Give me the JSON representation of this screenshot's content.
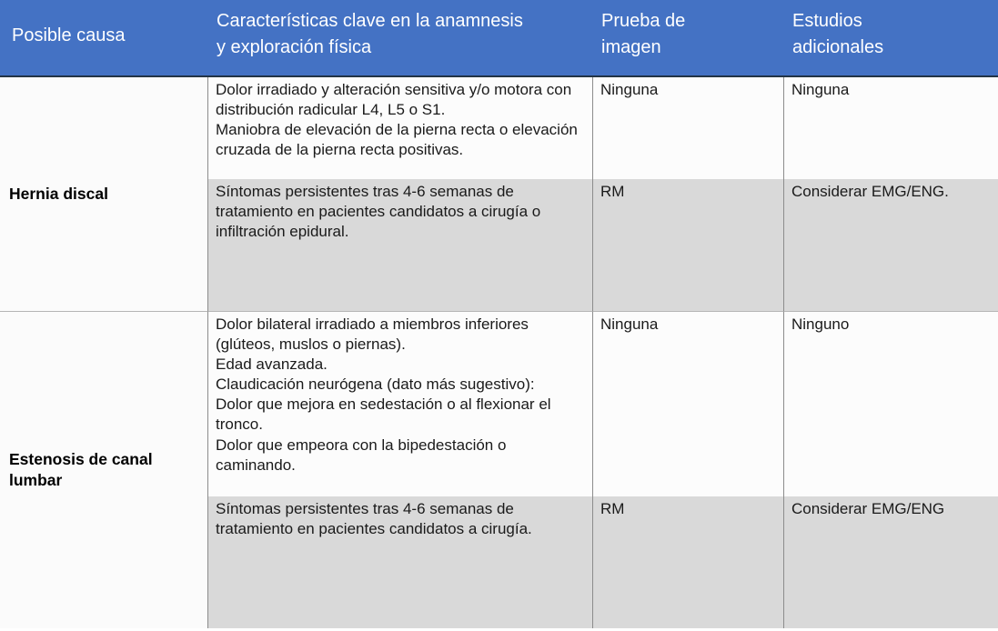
{
  "table": {
    "columns": [
      {
        "lines": [
          "Posible causa"
        ]
      },
      {
        "lines": [
          "Características clave en la anamnesis",
          "y exploración física"
        ]
      },
      {
        "lines": [
          "Prueba de",
          "imagen"
        ]
      },
      {
        "lines": [
          "Estudios",
          "adicionales"
        ]
      }
    ],
    "groups": [
      {
        "cause": "Hernia discal",
        "rows": [
          {
            "features": [
              "Dolor irradiado y alteración sensitiva y/o motora con distribución radicular L4, L5 o S1.",
              "Maniobra de elevación de la pierna recta o elevación cruzada de la pierna recta positivas."
            ],
            "imaging": "Ninguna",
            "additional": "Ninguna"
          },
          {
            "features": [
              "Síntomas persistentes tras 4-6 semanas de tratamiento en pacientes candidatos a cirugía o infiltración epidural."
            ],
            "imaging": "RM",
            "additional": "Considerar EMG/ENG."
          }
        ]
      },
      {
        "cause": "Estenosis de canal lumbar",
        "rows": [
          {
            "features": [
              "Dolor bilateral irradiado a miembros inferiores (glúteos, muslos o piernas).",
              "Edad avanzada.",
              "Claudicación neurógena (dato más sugestivo):",
              "Dolor que mejora en sedestación o al flexionar el tronco.",
              "Dolor que empeora con la bipedestación o caminando."
            ],
            "imaging": "Ninguna",
            "additional": "Ninguno"
          },
          {
            "features": [
              "Síntomas persistentes tras 4-6 semanas de tratamiento en pacientes candidatos a cirugía."
            ],
            "imaging": "RM",
            "additional": "Considerar EMG/ENG"
          }
        ]
      }
    ],
    "colors": {
      "header_bg": "#4472C4",
      "header_text": "#FFFFFF",
      "shaded_row_bg": "#D9D9D9",
      "plain_row_bg": "#FCFCFC",
      "grid_line": "#8C8C8C"
    }
  }
}
